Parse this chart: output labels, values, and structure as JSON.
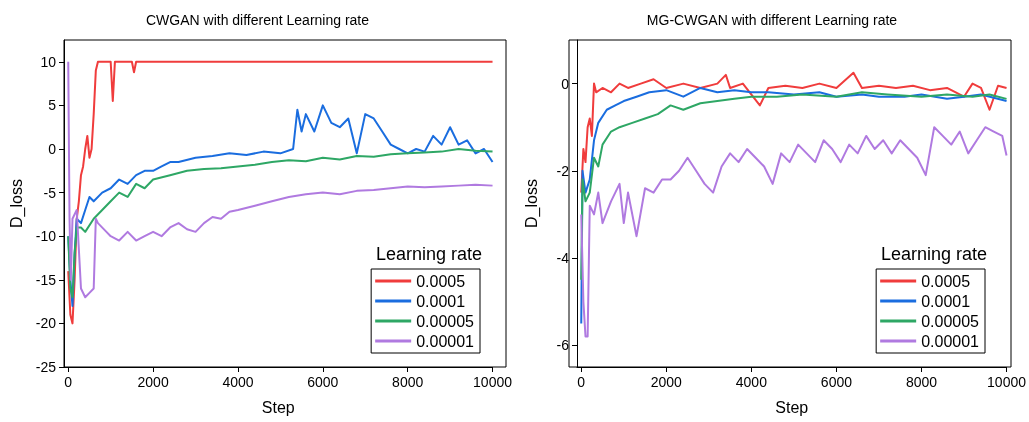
{
  "chart_data": [
    {
      "type": "line",
      "title": "CWGAN with different Learning rate",
      "xlabel": "Step",
      "ylabel": "D_loss",
      "legend_title": "Learning rate",
      "legend": "bottom right",
      "grid": false,
      "xlim": [
        -100,
        10000
      ],
      "xticks": [
        0,
        2000,
        4000,
        6000,
        8000,
        10000
      ],
      "ylim": [
        -25,
        12.5
      ],
      "yticks": [
        -25,
        -20,
        -15,
        -10,
        -5,
        0,
        5,
        10
      ],
      "series": [
        {
          "name": "0.0005",
          "color": "#f03c3c",
          "x": [
            0,
            50,
            100,
            150,
            200,
            250,
            300,
            350,
            400,
            450,
            500,
            550,
            600,
            650,
            700,
            1000,
            1050,
            1100,
            1500,
            1550,
            1600,
            10000
          ],
          "values": [
            -14,
            -19,
            -20,
            -15,
            -8,
            -6,
            -3,
            -2,
            0,
            1.5,
            -1,
            0,
            4,
            9,
            10,
            10,
            5.5,
            10,
            10,
            8.8,
            10,
            10
          ]
        },
        {
          "name": "0.0001",
          "color": "#1a6ddf",
          "x": [
            0,
            50,
            100,
            150,
            200,
            300,
            400,
            500,
            600,
            800,
            1000,
            1200,
            1400,
            1600,
            1800,
            2000,
            2200,
            2400,
            2600,
            3000,
            3400,
            3800,
            4200,
            4600,
            5000,
            5300,
            5400,
            5500,
            5600,
            5800,
            6000,
            6200,
            6400,
            6600,
            6800,
            7000,
            7200,
            7400,
            7600,
            7800,
            8000,
            8200,
            8400,
            8600,
            8800,
            9000,
            9200,
            9400,
            9600,
            9800,
            10000
          ],
          "values": [
            -10,
            -15,
            -18,
            -12,
            -8,
            -8.5,
            -7,
            -5.5,
            -6,
            -5,
            -4.5,
            -3.5,
            -4,
            -3,
            -2.5,
            -2.5,
            -2,
            -1.5,
            -1.5,
            -1,
            -0.8,
            -0.5,
            -0.7,
            -0.3,
            -0.5,
            0,
            4.5,
            2,
            4,
            2,
            5,
            3,
            2.5,
            3.5,
            -0.5,
            4,
            3.5,
            2,
            0.5,
            0,
            -0.5,
            0,
            -0.3,
            1.5,
            0.5,
            2.5,
            0.5,
            1,
            -0.5,
            0,
            -1.5
          ]
        },
        {
          "name": "0.00005",
          "color": "#2ea765",
          "x": [
            0,
            50,
            100,
            150,
            200,
            300,
            400,
            600,
            800,
            1000,
            1200,
            1400,
            1600,
            1800,
            2000,
            2400,
            2800,
            3200,
            3600,
            4000,
            4400,
            4800,
            5200,
            5600,
            6000,
            6400,
            6800,
            7200,
            7600,
            8000,
            8400,
            8800,
            9200,
            9600,
            10000
          ],
          "values": [
            -10,
            -16,
            -17,
            -12,
            -9,
            -9,
            -9.5,
            -8,
            -7,
            -6,
            -5,
            -5.5,
            -4,
            -4.5,
            -3.5,
            -3,
            -2.5,
            -2.3,
            -2.2,
            -2,
            -1.8,
            -1.5,
            -1.3,
            -1.4,
            -1,
            -1.2,
            -0.8,
            -0.9,
            -0.6,
            -0.5,
            -0.4,
            -0.3,
            0,
            -0.2,
            -0.3
          ]
        },
        {
          "name": "0.00001",
          "color": "#b07ae0",
          "x": [
            0,
            30,
            60,
            100,
            200,
            300,
            400,
            500,
            600,
            650,
            700,
            900,
            1000,
            1200,
            1400,
            1600,
            1800,
            2000,
            2200,
            2400,
            2600,
            2800,
            3000,
            3200,
            3400,
            3600,
            3800,
            4000,
            4400,
            4800,
            5200,
            5600,
            6000,
            6400,
            6800,
            7200,
            7600,
            8000,
            8400,
            8800,
            9200,
            9600,
            10000
          ],
          "values": [
            10,
            -8,
            -15,
            -8,
            -7,
            -16,
            -17,
            -16.5,
            -16,
            -8,
            -8.5,
            -9.5,
            -10,
            -10.5,
            -9.5,
            -10.5,
            -10,
            -9.5,
            -10,
            -9,
            -8.5,
            -9.2,
            -9.5,
            -8.5,
            -7.8,
            -8,
            -7.2,
            -7,
            -6.5,
            -6,
            -5.5,
            -5.2,
            -5,
            -5.2,
            -4.8,
            -4.7,
            -4.5,
            -4.3,
            -4.4,
            -4.3,
            -4.2,
            -4.1,
            -4.2
          ]
        }
      ]
    },
    {
      "type": "line",
      "title": "MG-CWGAN with different Learning rate",
      "xlabel": "Step",
      "ylabel": "D_loss",
      "legend_title": "Learning rate",
      "legend": "bottom right",
      "grid": false,
      "xlim": [
        -100,
        10000
      ],
      "xticks": [
        0,
        2000,
        4000,
        6000,
        8000,
        10000
      ],
      "ylim": [
        -6.5,
        1
      ],
      "yticks": [
        -6,
        -4,
        -2,
        0
      ],
      "series": [
        {
          "name": "0.0005",
          "color": "#f03c3c",
          "x": [
            0,
            50,
            100,
            150,
            200,
            250,
            300,
            350,
            500,
            700,
            900,
            1100,
            1400,
            1700,
            2000,
            2400,
            2800,
            3200,
            3400,
            3500,
            3800,
            4200,
            4400,
            4800,
            5200,
            5600,
            6000,
            6400,
            6600,
            7000,
            7400,
            7800,
            8200,
            8600,
            9000,
            9200,
            9400,
            9600,
            9800,
            10000
          ],
          "values": [
            -2.5,
            -1.5,
            -1.8,
            -1,
            -0.8,
            -1.2,
            0,
            -0.2,
            -0.1,
            -0.2,
            0,
            -0.1,
            0,
            0.1,
            -0.1,
            0,
            -0.1,
            0,
            0.2,
            -0.1,
            0,
            -0.5,
            -0.1,
            -0.05,
            -0.1,
            0,
            -0.1,
            0.25,
            -0.1,
            -0.05,
            -0.1,
            -0.05,
            -0.15,
            -0.1,
            -0.3,
            0,
            -0.1,
            -0.6,
            -0.05,
            -0.1
          ]
        },
        {
          "name": "0.0001",
          "color": "#1a6ddf",
          "x": [
            0,
            30,
            100,
            200,
            300,
            400,
            600,
            800,
            1000,
            1300,
            1600,
            2000,
            2400,
            2800,
            3200,
            3600,
            4000,
            4400,
            5000,
            5600,
            6000,
            6600,
            7000,
            7600,
            8000,
            8600,
            9000,
            9400,
            10000
          ],
          "values": [
            -5.5,
            -2,
            -2.5,
            -2.2,
            -1.3,
            -0.9,
            -0.6,
            -0.5,
            -0.4,
            -0.3,
            -0.2,
            -0.15,
            -0.3,
            -0.1,
            -0.2,
            -0.15,
            -0.2,
            -0.2,
            -0.25,
            -0.2,
            -0.3,
            -0.25,
            -0.3,
            -0.3,
            -0.25,
            -0.35,
            -0.3,
            -0.25,
            -0.4
          ]
        },
        {
          "name": "0.00005",
          "color": "#2ea765",
          "x": [
            0,
            30,
            100,
            200,
            300,
            400,
            500,
            700,
            900,
            1200,
            1500,
            1800,
            2100,
            2400,
            2800,
            3200,
            3600,
            4000,
            4600,
            5200,
            6000,
            6600,
            7200,
            8000,
            8600,
            9200,
            9600,
            10000
          ],
          "values": [
            -4.5,
            -2.2,
            -2.7,
            -2.5,
            -1.7,
            -1.9,
            -1.4,
            -1.1,
            -1,
            -0.9,
            -0.8,
            -0.7,
            -0.5,
            -0.6,
            -0.45,
            -0.4,
            -0.35,
            -0.3,
            -0.3,
            -0.25,
            -0.3,
            -0.2,
            -0.25,
            -0.3,
            -0.25,
            -0.3,
            -0.25,
            -0.35
          ]
        },
        {
          "name": "0.00001",
          "color": "#b07ae0",
          "x": [
            0,
            50,
            100,
            150,
            200,
            300,
            400,
            500,
            700,
            900,
            1000,
            1100,
            1300,
            1500,
            1700,
            1900,
            2100,
            2300,
            2500,
            2700,
            2900,
            3100,
            3300,
            3500,
            3700,
            3900,
            4100,
            4300,
            4500,
            4700,
            4900,
            5100,
            5300,
            5500,
            5700,
            5900,
            6100,
            6300,
            6500,
            6700,
            6900,
            7100,
            7300,
            7500,
            7700,
            7900,
            8100,
            8300,
            8500,
            8700,
            8900,
            9100,
            9300,
            9500,
            9700,
            9900,
            10000
          ],
          "values": [
            -3,
            -5,
            -5.8,
            -5.8,
            -2.8,
            -3,
            -2.5,
            -3.2,
            -2.7,
            -2.3,
            -3.2,
            -2.5,
            -3.5,
            -2.4,
            -2.5,
            -2.2,
            -2.2,
            -2,
            -1.7,
            -2,
            -2.3,
            -2.5,
            -1.9,
            -1.6,
            -1.8,
            -1.5,
            -1.7,
            -1.9,
            -2.3,
            -1.6,
            -1.8,
            -1.4,
            -1.6,
            -1.8,
            -1.3,
            -1.5,
            -1.8,
            -1.4,
            -1.6,
            -1.2,
            -1.5,
            -1.3,
            -1.6,
            -1.3,
            -1.5,
            -1.7,
            -2.1,
            -1,
            -1.2,
            -1.4,
            -1.1,
            -1.6,
            -1.3,
            -1,
            -1.1,
            -1.2,
            -1.65
          ]
        }
      ]
    }
  ]
}
